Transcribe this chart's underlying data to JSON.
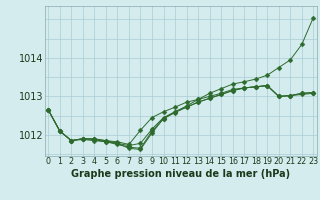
{
  "xlabel": "Graphe pression niveau de la mer (hPa)",
  "hours": [
    0,
    1,
    2,
    3,
    4,
    5,
    6,
    7,
    8,
    9,
    10,
    11,
    12,
    13,
    14,
    15,
    16,
    17,
    18,
    19,
    20,
    21,
    22,
    23
  ],
  "line1": [
    1012.65,
    1012.1,
    1011.85,
    1011.9,
    1011.9,
    1011.85,
    1011.82,
    1011.75,
    1012.12,
    1012.45,
    1012.6,
    1012.72,
    1012.85,
    1012.92,
    1013.0,
    1013.08,
    1013.18,
    1013.22,
    1013.25,
    1013.28,
    1013.0,
    1013.02,
    1013.05,
    1013.08
  ],
  "line2": [
    1012.65,
    1012.1,
    1011.85,
    1011.9,
    1011.88,
    1011.82,
    1011.78,
    1011.72,
    1011.78,
    1012.15,
    1012.45,
    1012.6,
    1012.72,
    1012.85,
    1012.95,
    1013.05,
    1013.15,
    1013.22,
    1013.25,
    1013.28,
    1013.0,
    1013.02,
    1013.08,
    1013.1
  ],
  "line3": [
    1012.65,
    1012.1,
    1011.85,
    1011.88,
    1011.85,
    1011.82,
    1011.75,
    1011.68,
    1011.65,
    1012.1,
    1012.42,
    1012.58,
    1012.72,
    1012.85,
    1012.95,
    1013.05,
    1013.15,
    1013.22,
    1013.25,
    1013.28,
    1013.0,
    1013.02,
    1013.08,
    1013.1
  ],
  "line4": [
    1012.65,
    1012.1,
    1011.85,
    1011.9,
    1011.88,
    1011.85,
    1011.78,
    1011.65,
    1011.62,
    1012.05,
    1012.42,
    1012.6,
    1012.75,
    1012.92,
    1013.08,
    1013.2,
    1013.32,
    1013.38,
    1013.45,
    1013.55,
    1013.75,
    1013.95,
    1014.35,
    1015.05
  ],
  "ylim": [
    1011.45,
    1015.35
  ],
  "yticks": [
    1012,
    1013,
    1014
  ],
  "ygrid_vals": [
    1011.5,
    1012.0,
    1012.5,
    1013.0,
    1013.5,
    1014.0,
    1014.5,
    1015.0
  ],
  "bg_color": "#d4ecee",
  "grid_color": "#aacdd4",
  "line_color": "#2d6a2d",
  "marker_size": 2.5,
  "label_color": "#1a3a1a",
  "label_fontsize": 7.0,
  "tick_fontsize": 5.8
}
